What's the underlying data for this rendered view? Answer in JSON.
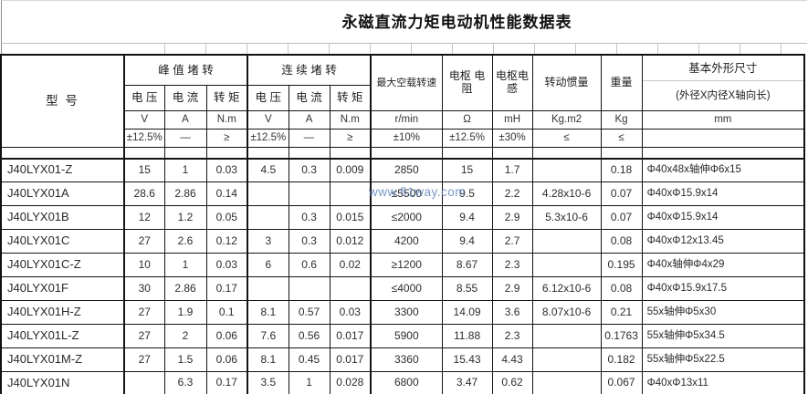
{
  "title": "永磁直流力矩电动机性能数据表",
  "watermark": "www.51way.com",
  "header": {
    "model": "型  号",
    "peak_group": "峰 值 堵 转",
    "cont_group": "连 续 堵 转",
    "voltage": "电 压",
    "current": "电 流",
    "torque": "转 矩",
    "max_speed": "最大空载转速",
    "resistance": "电枢 电阻",
    "inductance": "电枢电感",
    "inertia": "转动惯量",
    "weight": "重量",
    "dims_title": "基本外形尺寸",
    "dims_sub": "(外径X内径X轴向长)",
    "units": [
      "V",
      "A",
      "N.m",
      "V",
      "A",
      "N.m",
      "r/min",
      "Ω",
      "mH",
      "Kg.m2",
      "Kg",
      "mm"
    ],
    "tolerances": [
      "±12.5%",
      "—",
      "≥",
      "±12.5%",
      "—",
      "≥",
      "±10%",
      "±12.5%",
      "±30%",
      "≤",
      "≤",
      ""
    ]
  },
  "rows": [
    [
      "J40LYX01-Z",
      "15",
      "1",
      "0.03",
      "4.5",
      "0.3",
      "0.009",
      "2850",
      "15",
      "1.7",
      "",
      "0.18",
      "Φ40x48x轴伸Φ6x15"
    ],
    [
      "J40LYX01A",
      "28.6",
      "2.86",
      "0.14",
      "",
      "",
      "",
      "≤5500",
      "9.5",
      "2.2",
      "4.28x10-6",
      "0.07",
      "Φ40xΦ15.9x14"
    ],
    [
      "J40LYX01B",
      "12",
      "1.2",
      "0.05",
      "",
      "0.3",
      "0.015",
      "≤2000",
      "9.4",
      "2.9",
      "5.3x10-6",
      "0.07",
      "Φ40xΦ15.9x14"
    ],
    [
      "J40LYX01C",
      "27",
      "2.6",
      "0.12",
      "3",
      "0.3",
      "0.012",
      "4200",
      "9.4",
      "2.7",
      "",
      "0.08",
      "Φ40xΦ12x13.45"
    ],
    [
      "J40LYX01C-Z",
      "10",
      "1",
      "0.03",
      "6",
      "0.6",
      "0.02",
      "≥1200",
      "8.67",
      "2.3",
      "",
      "0.195",
      "Φ40x轴伸Φ4x29"
    ],
    [
      "J40LYX01F",
      "30",
      "2.86",
      "0.17",
      "",
      "",
      "",
      "≤4000",
      "8.55",
      "2.9",
      "6.12x10-6",
      "0.08",
      "Φ40xΦ15.9x17.5"
    ],
    [
      "J40LYX01H-Z",
      "27",
      "1.9",
      "0.1",
      "8.1",
      "0.57",
      "0.03",
      "3300",
      "14.09",
      "3.6",
      "8.07x10-6",
      "0.21",
      "55x轴伸Φ5x30"
    ],
    [
      "J40LYX01L-Z",
      "27",
      "2",
      "0.06",
      "7.6",
      "0.56",
      "0.017",
      "5900",
      "11.88",
      "2.3",
      "",
      "0.1763",
      "55x轴伸Φ5x34.5"
    ],
    [
      "J40LYX01M-Z",
      "27",
      "1.5",
      "0.06",
      "8.1",
      "0.45",
      "0.017",
      "3360",
      "15.43",
      "4.43",
      "",
      "0.182",
      "55x轴伸Φ5x22.5"
    ],
    [
      "J40LYX01N",
      "",
      "6.3",
      "0.17",
      "3.5",
      "1",
      "0.028",
      "6800",
      "3.47",
      "0.62",
      "",
      "0.067",
      "Φ40xΦ13x11"
    ]
  ]
}
